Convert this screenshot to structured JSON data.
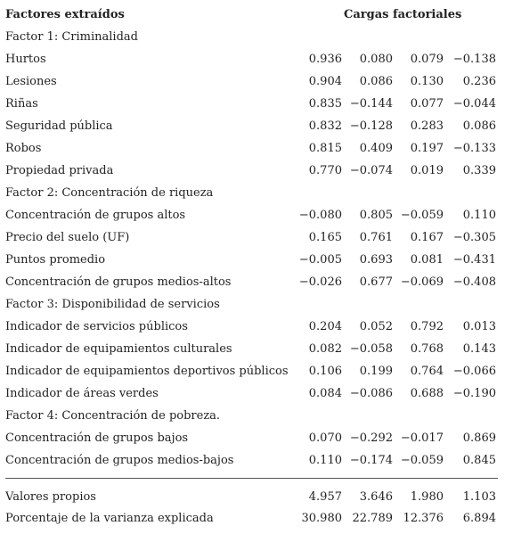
{
  "header": {
    "variables": "Factores extraídos",
    "loadings": "Cargas factoriales"
  },
  "groups": [
    {
      "title": "Factor 1: Criminalidad",
      "rows": [
        {
          "label": "Hurtos",
          "values": [
            "0.936",
            "0.080",
            "0.079",
            "−0.138"
          ]
        },
        {
          "label": "Lesiones",
          "values": [
            "0.904",
            "0.086",
            "0.130",
            "0.236"
          ]
        },
        {
          "label": "Riñas",
          "values": [
            "0.835",
            "−0.144",
            "0.077",
            "−0.044"
          ]
        },
        {
          "label": "Seguridad pública",
          "values": [
            "0.832",
            "−0.128",
            "0.283",
            "0.086"
          ]
        },
        {
          "label": "Robos",
          "values": [
            "0.815",
            "0.409",
            "0.197",
            "−0.133"
          ]
        },
        {
          "label": "Propiedad privada",
          "values": [
            "0.770",
            "−0.074",
            "0.019",
            "0.339"
          ]
        }
      ]
    },
    {
      "title": "Factor 2: Concentración de riqueza",
      "rows": [
        {
          "label": "Concentración de grupos altos",
          "values": [
            "−0.080",
            "0.805",
            "−0.059",
            "0.110"
          ]
        },
        {
          "label": "Precio del suelo (UF)",
          "values": [
            "0.165",
            "0.761",
            "0.167",
            "−0.305"
          ]
        },
        {
          "label": "Puntos promedio",
          "values": [
            "−0.005",
            "0.693",
            "0.081",
            "−0.431"
          ]
        },
        {
          "label": "Concentración de grupos medios-altos",
          "values": [
            "−0.026",
            "0.677",
            "−0.069",
            "−0.408"
          ]
        }
      ]
    },
    {
      "title": "Factor 3: Disponibilidad de servicios",
      "rows": [
        {
          "label": "Indicador de servicios públicos",
          "values": [
            "0.204",
            "0.052",
            "0.792",
            "0.013"
          ]
        },
        {
          "label": "Indicador de equipamientos culturales",
          "values": [
            "0.082",
            "−0.058",
            "0.768",
            "0.143"
          ]
        },
        {
          "label": "Indicador de equipamientos deportivos públicos",
          "values": [
            "0.106",
            "0.199",
            "0.764",
            "−0.066"
          ]
        },
        {
          "label": "Indicador de áreas verdes",
          "values": [
            "0.084",
            "−0.086",
            "0.688",
            "−0.190"
          ]
        }
      ]
    },
    {
      "title": "Factor 4: Concentración de pobreza.",
      "rows": [
        {
          "label": "Concentración de grupos bajos",
          "values": [
            "0.070",
            "−0.292",
            "−0.017",
            "0.869"
          ]
        },
        {
          "label": "Concentración de grupos medios-bajos",
          "values": [
            "0.110",
            "−0.174",
            "−0.059",
            "0.845"
          ]
        }
      ]
    }
  ],
  "footer": [
    {
      "label": "Valores propios",
      "values": [
        "4.957",
        "3.646",
        "1.980",
        "1.103"
      ]
    },
    {
      "label": "Porcentaje de la varianza explicada",
      "values": [
        "30.980",
        "22.789",
        "12.376",
        "6.894"
      ]
    }
  ]
}
